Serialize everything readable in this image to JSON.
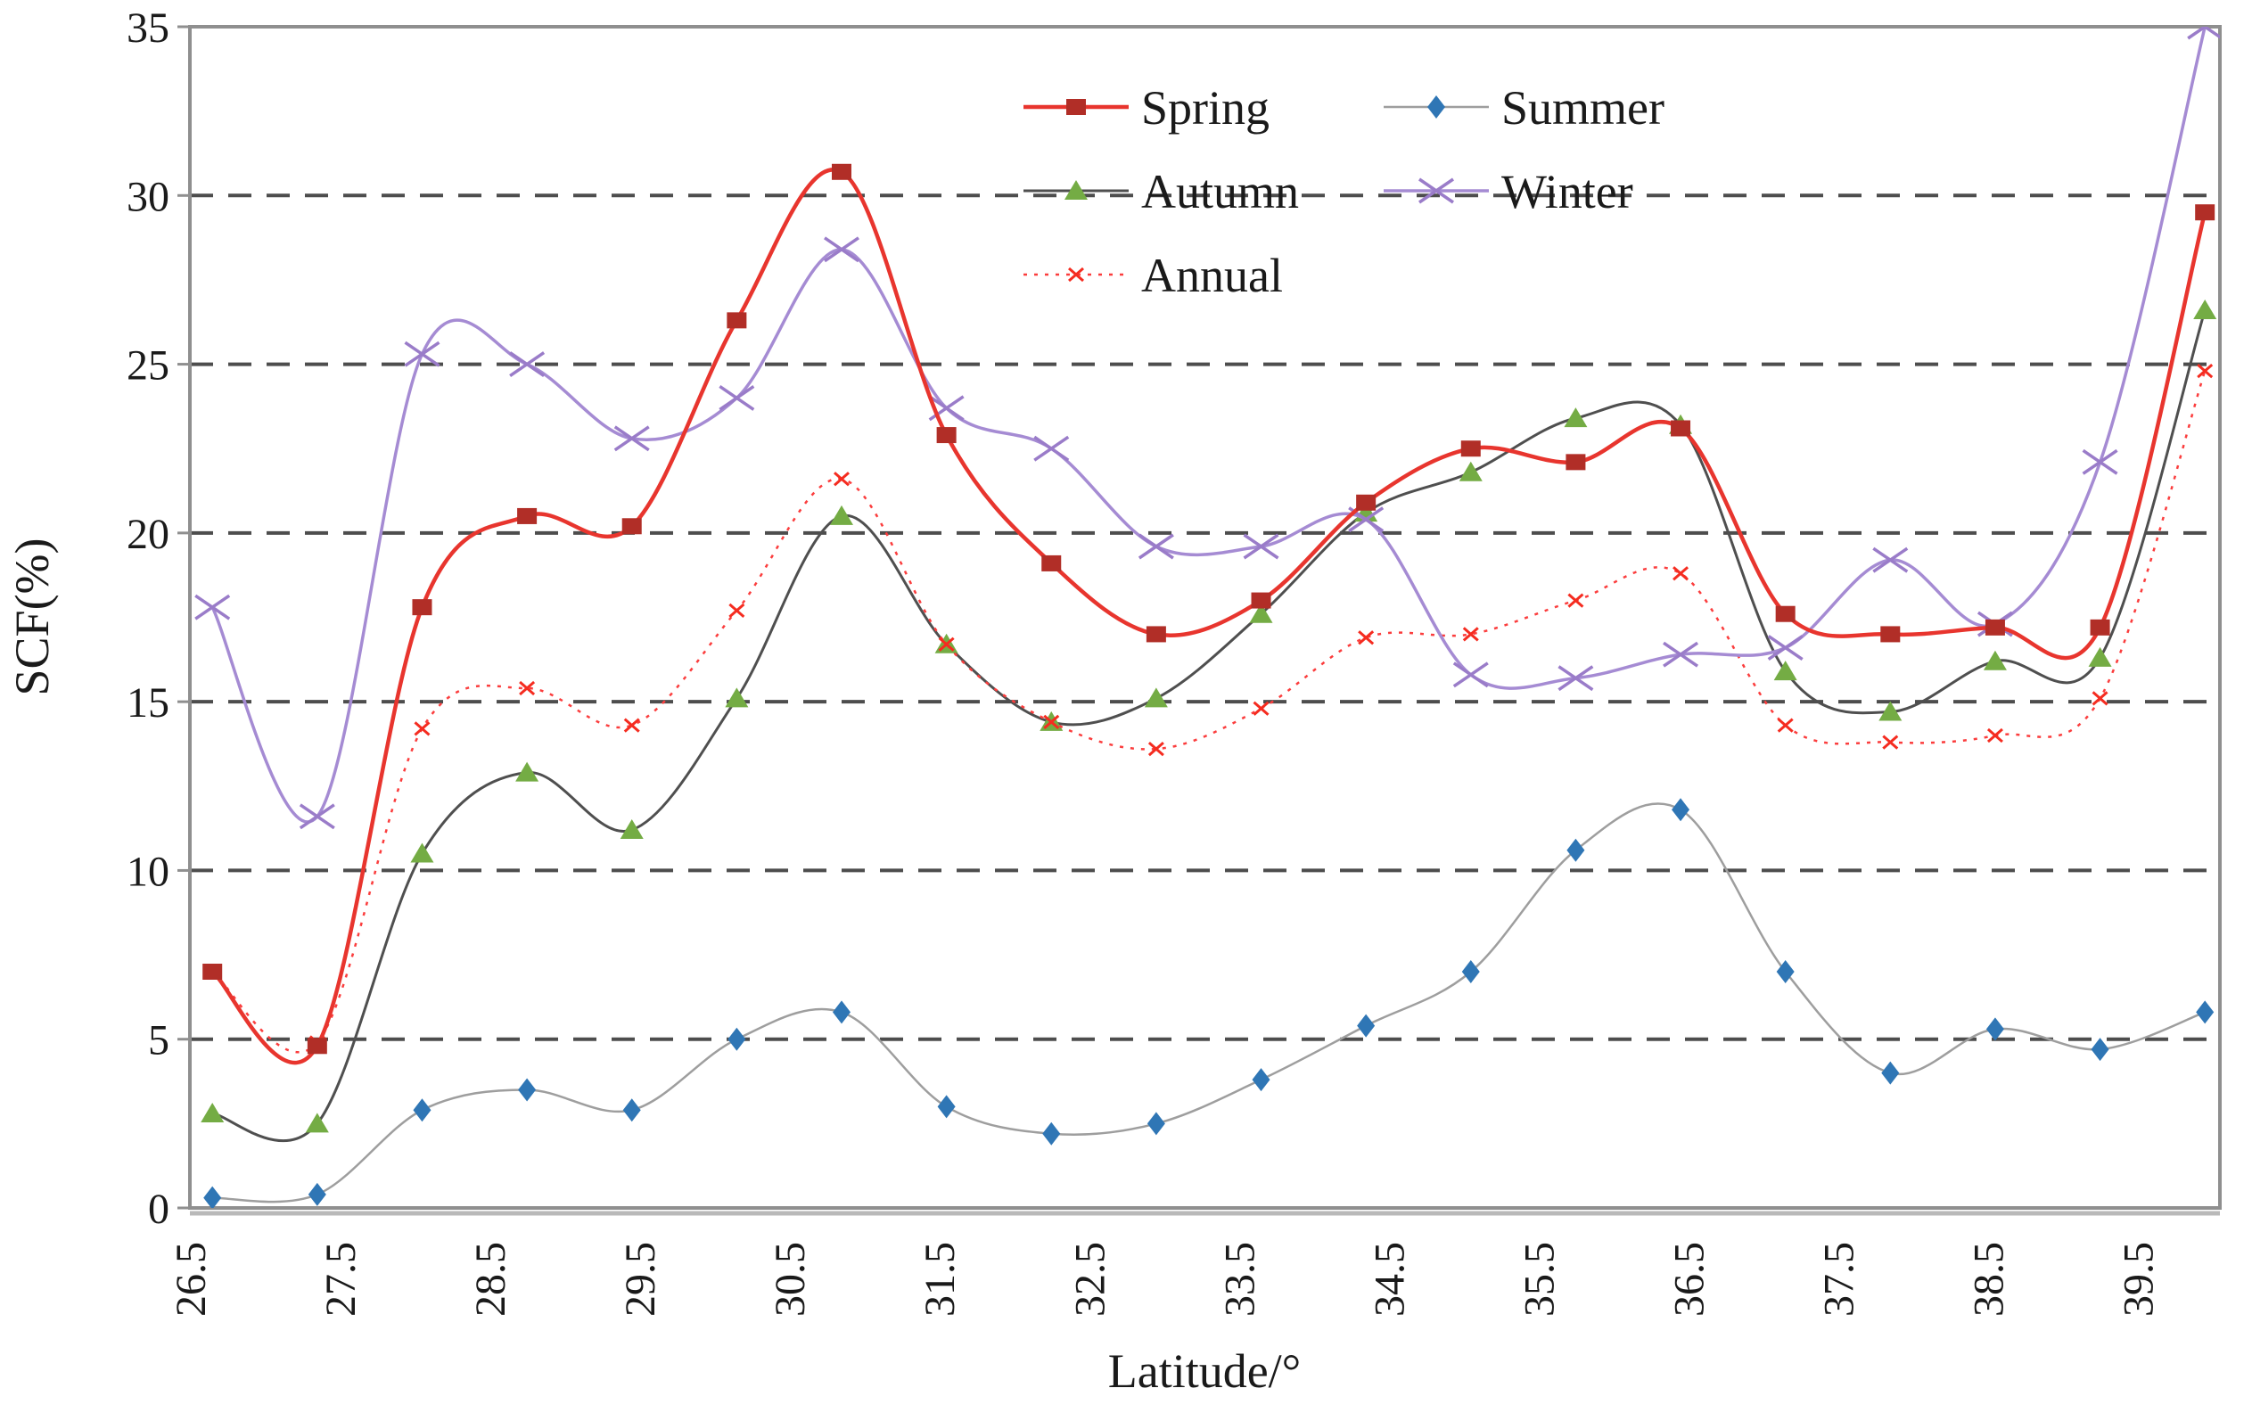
{
  "chart_data": {
    "type": "line",
    "title": "",
    "xlabel": "Latitude/°",
    "ylabel": "SCF(%)",
    "xlim": [
      26.5,
      40.05
    ],
    "ylim": [
      0,
      35
    ],
    "grid": {
      "axis": "y",
      "values": [
        5,
        10,
        15,
        20,
        25,
        30
      ],
      "style": "dashed",
      "color": "#4d4d4d"
    },
    "x_ticks": {
      "values": [
        26.5,
        27.5,
        28.5,
        29.5,
        30.5,
        31.5,
        32.5,
        33.5,
        34.5,
        35.5,
        36.5,
        37.5,
        38.5,
        39.5
      ],
      "labels": [
        "26.5",
        "27.5",
        "28.5",
        "29.5",
        "30.5",
        "31.5",
        "32.5",
        "33.5",
        "34.5",
        "35.5",
        "36.5",
        "37.5",
        "38.5",
        "39.5"
      ],
      "rotation": -90
    },
    "y_ticks": {
      "values": [
        0,
        5,
        10,
        15,
        20,
        25,
        30,
        35
      ],
      "labels": [
        "0",
        "5",
        "10",
        "15",
        "20",
        "25",
        "30",
        "35"
      ]
    },
    "x": [
      26.65,
      27.35,
      28.05,
      28.75,
      29.45,
      30.15,
      30.85,
      31.55,
      32.25,
      32.95,
      33.65,
      34.35,
      35.05,
      35.75,
      36.45,
      37.15,
      37.85,
      38.55,
      39.25,
      39.95
    ],
    "series": [
      {
        "name": "Spring",
        "marker": "square",
        "line_color": "#e8352e",
        "marker_color": "#b12e27",
        "line_width": 4.5,
        "dash": "solid",
        "values": [
          7.0,
          4.8,
          17.8,
          20.5,
          20.2,
          26.3,
          30.7,
          22.9,
          19.1,
          17.0,
          18.0,
          20.9,
          22.5,
          22.1,
          23.1,
          17.6,
          17.0,
          17.2,
          17.2,
          29.5
        ]
      },
      {
        "name": "Summer",
        "marker": "diamond",
        "line_color": "#9e9e9e",
        "marker_color": "#2f76b5",
        "line_width": 2.5,
        "dash": "solid",
        "values": [
          0.3,
          0.4,
          2.9,
          3.5,
          2.9,
          5.0,
          5.8,
          3.0,
          2.2,
          2.5,
          3.8,
          5.4,
          7.0,
          10.6,
          11.8,
          7.0,
          4.0,
          5.3,
          4.7,
          5.8
        ]
      },
      {
        "name": "Autumn",
        "marker": "triangle",
        "line_color": "#4f4f4f",
        "marker_color": "#74ac44",
        "line_width": 3,
        "dash": "solid",
        "values": [
          2.8,
          2.5,
          10.5,
          12.9,
          11.2,
          15.1,
          20.5,
          16.7,
          14.4,
          15.1,
          17.6,
          20.6,
          21.8,
          23.4,
          23.2,
          15.9,
          14.7,
          16.2,
          16.3,
          26.6
        ]
      },
      {
        "name": "Winter",
        "marker": "x",
        "line_color": "#a58bd3",
        "marker_color": "#9a7cc9",
        "line_width": 3.5,
        "dash": "solid",
        "values": [
          17.8,
          11.6,
          25.3,
          25.0,
          22.8,
          24.0,
          28.4,
          23.7,
          22.5,
          19.6,
          19.6,
          20.4,
          15.8,
          15.7,
          16.4,
          16.6,
          19.2,
          17.3,
          22.1,
          35.0
        ]
      },
      {
        "name": "Annual",
        "marker": "x-small",
        "line_color": "#fb3d3d",
        "marker_color": "#f52c20",
        "line_width": 2.5,
        "dash": "dotted",
        "values": [
          7.0,
          4.9,
          14.2,
          15.4,
          14.3,
          17.7,
          21.6,
          16.7,
          14.4,
          13.6,
          14.8,
          16.9,
          17.0,
          18.0,
          18.8,
          14.3,
          13.8,
          14.0,
          15.1,
          24.8
        ]
      }
    ],
    "legend": {
      "position": "top-center",
      "rows": [
        [
          "Spring",
          "Summer"
        ],
        [
          "Autumn",
          "Winter"
        ],
        [
          "Annual"
        ]
      ]
    }
  }
}
